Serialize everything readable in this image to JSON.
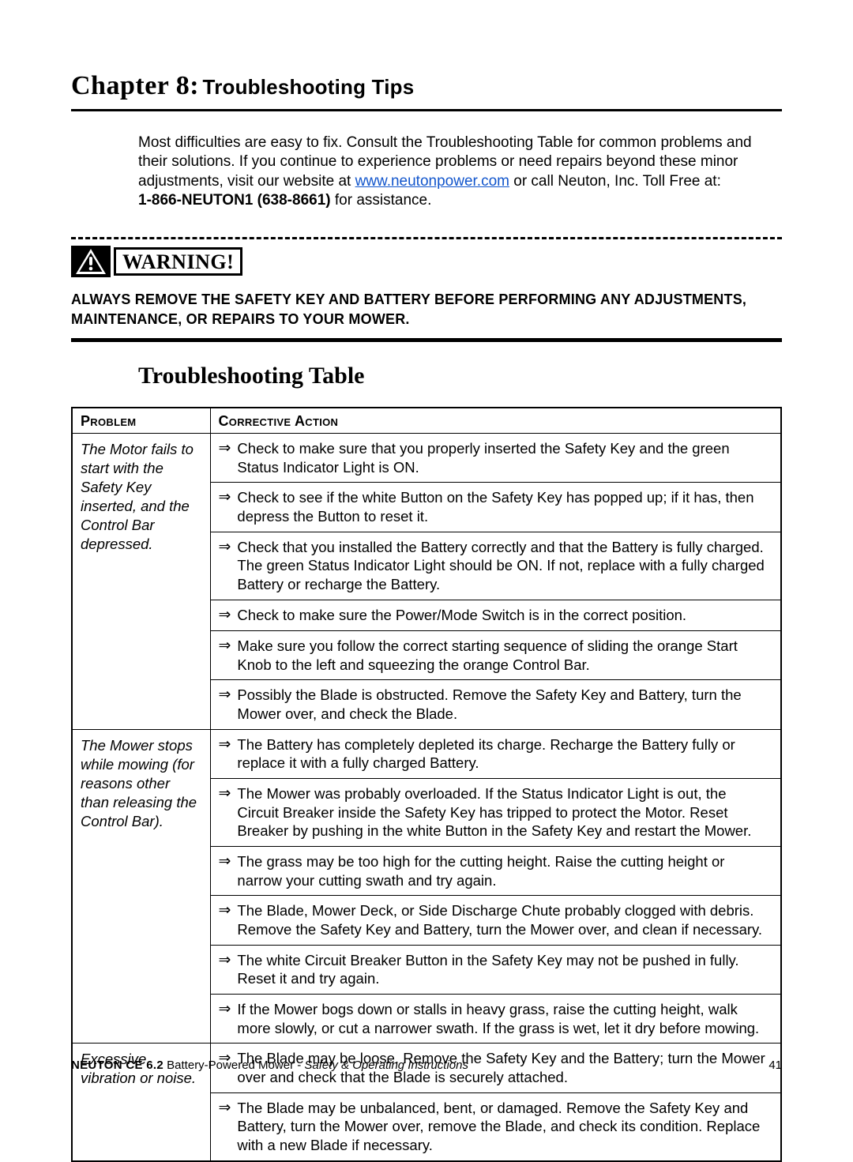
{
  "chapter": {
    "number_label": "Chapter 8:",
    "title": "Troubleshooting Tips"
  },
  "intro": {
    "text_before_link": "Most difficulties are easy to fix.  Consult the Troubleshooting Table for common problems and their solutions.  If you continue to experience problems or need repairs beyond these minor adjustments, visit our website at ",
    "link_text": "www.neutonpower.com",
    "link_href": "http://www.neutonpower.com",
    "text_after_link": " or call Neuton, Inc. Toll Free at:",
    "phone_bold": "1-866-NEUTON1 (638-8661)",
    "phone_tail": " for assistance."
  },
  "warning": {
    "label": "WARNING!",
    "text": "ALWAYS REMOVE THE SAFETY KEY AND BATTERY BEFORE PERFORMING ANY ADJUSTMENTS, MAINTENANCE, OR REPAIRS TO YOUR MOWER."
  },
  "section_title": "Troubleshooting Table",
  "table": {
    "headers": {
      "problem": "Problem",
      "action": "Corrective Action"
    },
    "arrow_glyph": "⇒",
    "rows": [
      {
        "problem": "The Motor fails to start with the Safety Key inserted, and the Control Bar depressed.",
        "actions": [
          "Check to make sure that you properly inserted the Safety Key and the green Status Indicator Light is ON.",
          "Check to see if the white Button on the Safety Key has popped up; if it has, then depress the Button to reset it.",
          "Check that you installed the Battery correctly and that the Battery is fully charged.  The green Status Indicator Light should be ON.  If not, replace with a fully charged Battery or recharge the Battery.",
          "Check to make sure the Power/Mode Switch is in the correct position.",
          "Make sure you follow the correct starting sequence of sliding the orange Start Knob to the left and squeezing the orange Control Bar.",
          "Possibly the Blade is obstructed.  Remove the Safety Key and Battery, turn the Mower over, and check the Blade."
        ]
      },
      {
        "problem": "The Mower stops while mowing (for reasons other than releasing the Control Bar).",
        "actions": [
          "The Battery has completely depleted its charge.  Recharge the Battery fully or replace it with a fully charged Battery.",
          "The Mower was probably overloaded.  If the Status Indicator Light is out, the Circuit Breaker inside the Safety Key has tripped to protect the Motor.  Reset Breaker by pushing in the white Button in the Safety Key and restart the Mower.",
          "The grass may be too high for the cutting height.  Raise the cutting height or narrow your cutting swath and try again.",
          "The Blade, Mower Deck, or Side Discharge Chute probably clogged with debris.  Remove the Safety Key and Battery, turn the Mower over, and clean if necessary.",
          "The white Circuit Breaker Button in the Safety Key may not be pushed in fully.  Reset it and try again.",
          "If the Mower bogs down or stalls in heavy grass, raise the cutting height, walk more slowly, or cut a narrower swath.  If the grass is wet, let it dry before mowing."
        ]
      },
      {
        "problem": "Excessive vibration or noise.",
        "actions": [
          "The Blade may be loose.  Remove the Safety Key and the Battery; turn the Mower over and check that the Blade is securely attached.",
          "The Blade may be unbalanced, bent, or damaged.  Remove the Safety Key and Battery, turn the Mower over, remove the Blade, and check its condition.  Replace with a new Blade if necessary."
        ]
      }
    ]
  },
  "footer": {
    "product": "NEUTON CE 6.2",
    "sub": " Battery-Powered Mower - ",
    "ital": "Safety & Operating Instructions",
    "page": "41"
  },
  "colors": {
    "link": "#1155cc",
    "text": "#000000",
    "background": "#ffffff",
    "rule": "#000000"
  }
}
